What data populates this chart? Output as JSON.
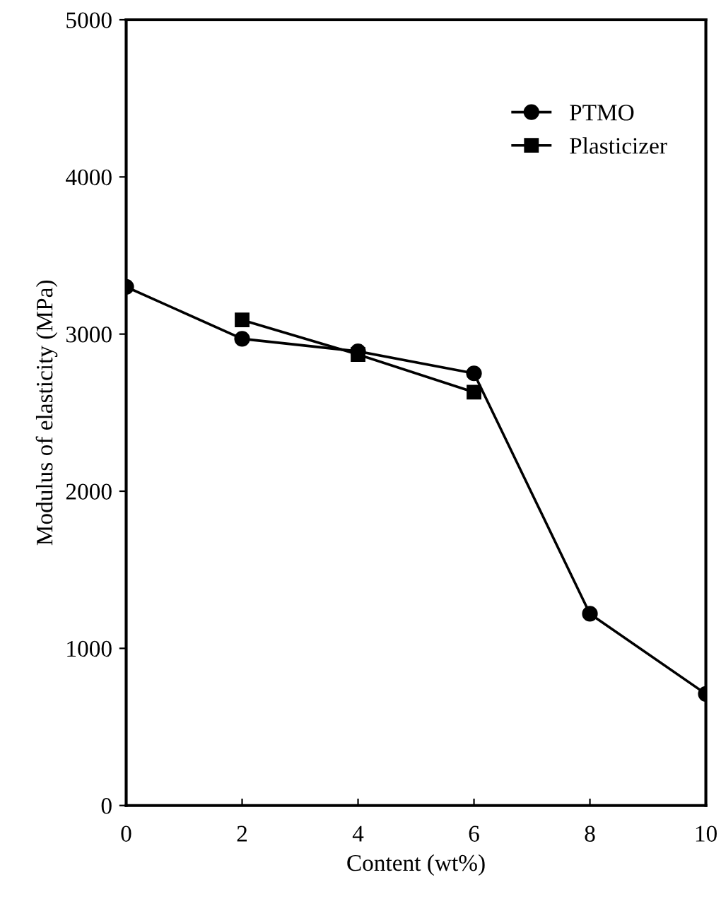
{
  "chart_data": {
    "type": "line",
    "xlabel": "Content (wt%)",
    "ylabel": "Modulus of elasticity (MPa)",
    "x": [
      0,
      2,
      4,
      6,
      8,
      10
    ],
    "series": [
      {
        "name": "PTMO",
        "color": "#000000",
        "marker": "circle",
        "values": [
          3300,
          2970,
          2890,
          2750,
          1220,
          710
        ]
      },
      {
        "name": "Plasticizer",
        "color": "#000000",
        "marker": "square",
        "values": [
          null,
          3090,
          2870,
          2630,
          null,
          null
        ]
      }
    ],
    "xlim": [
      0,
      10
    ],
    "xticks": [
      0,
      2,
      4,
      6,
      8,
      10
    ],
    "ylim": [
      0,
      5000
    ],
    "yticks": [
      0,
      1000,
      2000,
      3000,
      4000,
      5000
    ],
    "grid": false,
    "legend": "top right",
    "line_style": "solid"
  }
}
